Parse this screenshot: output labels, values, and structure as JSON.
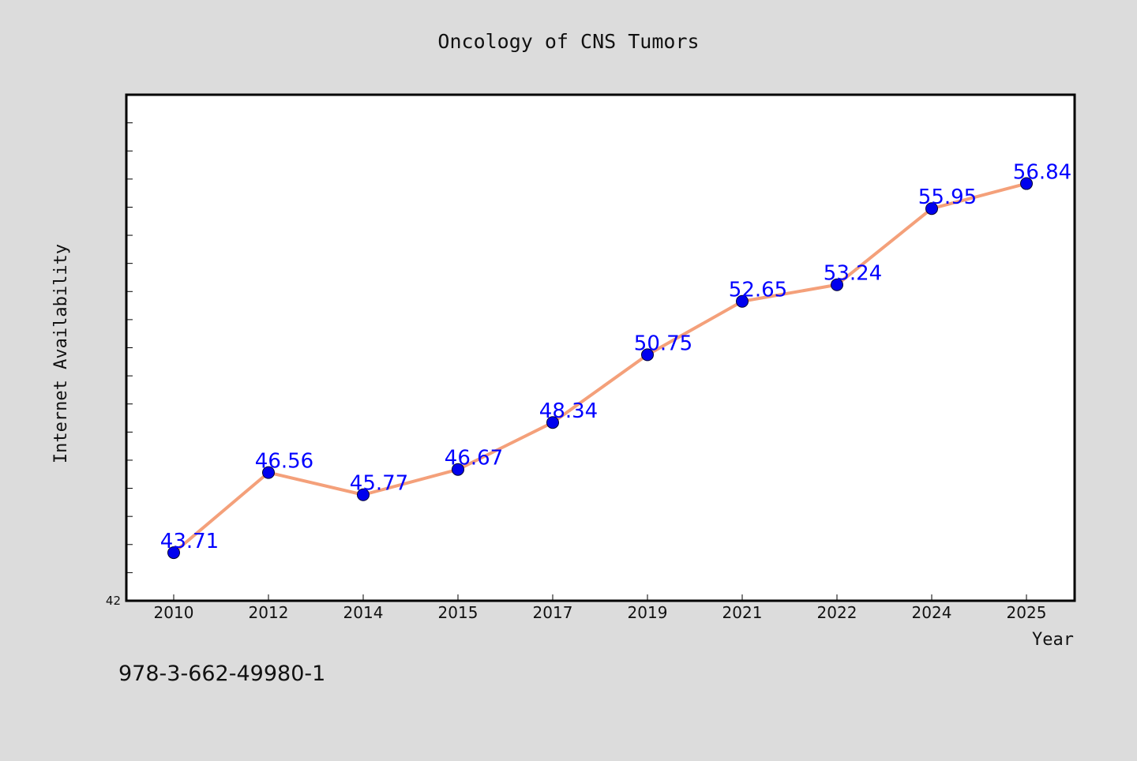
{
  "chart_data": {
    "type": "line",
    "title": "Oncology of CNS Tumors",
    "xlabel": "Year",
    "ylabel": "Internet Availability",
    "categories": [
      "2010",
      "2012",
      "2014",
      "2015",
      "2017",
      "2019",
      "2021",
      "2022",
      "2024",
      "2025"
    ],
    "series": [
      {
        "values": [
          43.71,
          46.56,
          45.77,
          46.67,
          48.34,
          50.75,
          52.65,
          53.24,
          55.95,
          56.84
        ],
        "labels": [
          "43.71",
          "46.56",
          "45.77",
          "46.67",
          "48.34",
          "50.75",
          "52.65",
          "53.24",
          "55.95",
          "56.84"
        ]
      }
    ],
    "ylim": [
      42,
      60
    ],
    "y_tick_labels": [
      "42"
    ],
    "grid": false,
    "colors": {
      "line": "#f4a07a",
      "marker": "#0000ee",
      "label": "#0000ff",
      "background": "#dcdcdc",
      "plot_background": "#ffffff"
    }
  },
  "footer": {
    "isbn": "978-3-662-49980-1"
  }
}
